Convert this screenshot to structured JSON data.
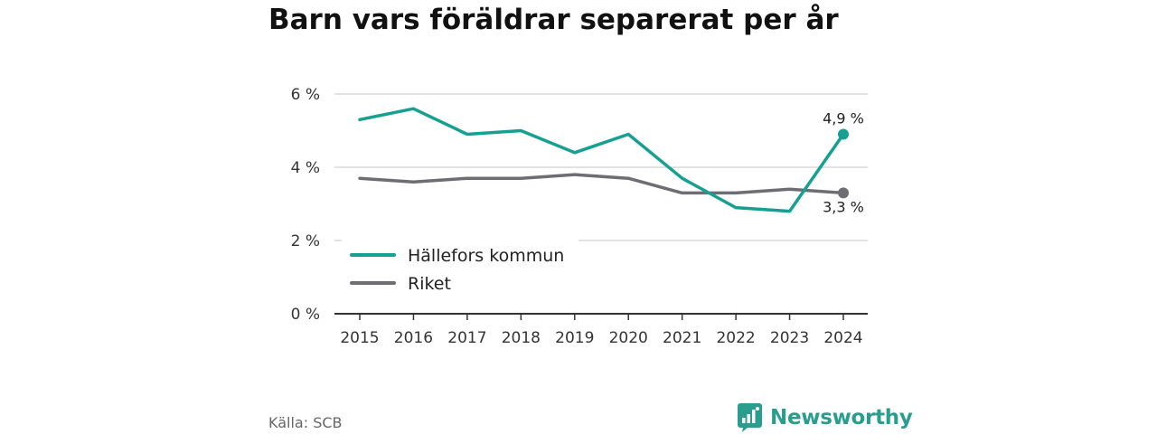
{
  "title": "Barn vars föräldrar separerat per år",
  "source": "Källa: SCB",
  "brand": {
    "name": "Newsworthy",
    "icon": "newsworthy-logo-icon",
    "color": "#2a9d8f"
  },
  "chart_data": {
    "type": "line",
    "title": "Barn vars föräldrar separerat per år",
    "xlabel": "",
    "ylabel": "",
    "x": [
      "2015",
      "2016",
      "2017",
      "2018",
      "2019",
      "2020",
      "2021",
      "2022",
      "2023",
      "2024"
    ],
    "ylim": [
      0,
      6
    ],
    "yticks": [
      0,
      2,
      4,
      6
    ],
    "ytick_labels": [
      "0 %",
      "2 %",
      "4 %",
      "6 %"
    ],
    "grid": true,
    "legend_position": "bottom-left",
    "series": [
      {
        "name": "Hällefors kommun",
        "color": "#16a091",
        "values": [
          5.3,
          5.6,
          4.9,
          5.0,
          4.4,
          4.9,
          3.7,
          2.9,
          2.8,
          4.9
        ],
        "end_label": "4,9 %"
      },
      {
        "name": "Riket",
        "color": "#6d6d73",
        "values": [
          3.7,
          3.6,
          3.7,
          3.7,
          3.8,
          3.7,
          3.3,
          3.3,
          3.4,
          3.3
        ],
        "end_label": "3,3 %"
      }
    ]
  }
}
